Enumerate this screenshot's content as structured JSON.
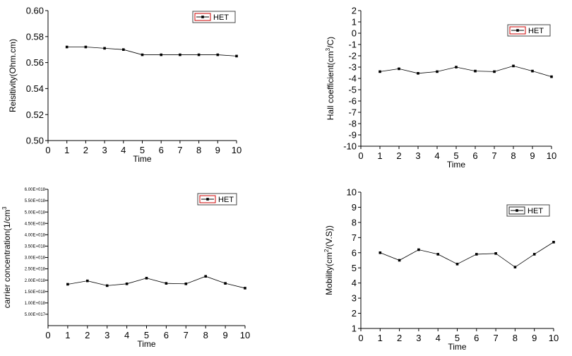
{
  "chart_data": [
    {
      "type": "line",
      "xlabel": "Time",
      "ylabel": "Reisitivity(Ohm.cm)",
      "ylabel_parts": [
        "Reisitivity(Ohm.cm)",
        "",
        ""
      ],
      "xlim": [
        0,
        10
      ],
      "ylim": [
        0.5,
        0.6
      ],
      "x_ticks": [
        "0",
        "1",
        "2",
        "3",
        "4",
        "5",
        "6",
        "7",
        "8",
        "9",
        "10"
      ],
      "y_tick_values": [
        0.5,
        0.52,
        0.54,
        0.56,
        0.58,
        0.6
      ],
      "y_ticks": [
        "0.50",
        "0.52",
        "0.54",
        "0.56",
        "0.58",
        "0.60"
      ],
      "legend_position": "top-right",
      "series": [
        {
          "name": "HET",
          "x": [
            1,
            2,
            3,
            4,
            5,
            6,
            7,
            8,
            9,
            10
          ],
          "values": [
            0.572,
            0.572,
            0.571,
            0.57,
            0.566,
            0.566,
            0.566,
            0.566,
            0.566,
            0.565
          ]
        }
      ],
      "marker_color": "#000000",
      "legend_border_color": "#cc0000"
    },
    {
      "type": "line",
      "xlabel": "Time",
      "ylabel": "Hall coefficient(cm3/C)",
      "ylabel_parts": [
        "Hall coefficient(cm",
        "3",
        "/C)"
      ],
      "xlim": [
        0,
        10
      ],
      "ylim": [
        -10,
        2
      ],
      "x_ticks": [
        "0",
        "1",
        "2",
        "3",
        "4",
        "5",
        "6",
        "7",
        "8",
        "9",
        "10"
      ],
      "y_tick_values": [
        -10,
        -9,
        -8,
        -7,
        -6,
        -5,
        -4,
        -3,
        -2,
        -1,
        0,
        1,
        2
      ],
      "y_ticks": [
        "-10",
        "-9",
        "-8",
        "-7",
        "-6",
        "-5",
        "-4",
        "-3",
        "-2",
        "-1",
        "0",
        "1",
        "2"
      ],
      "legend_position": "top-right",
      "series": [
        {
          "name": "HET",
          "x": [
            1,
            2,
            3,
            4,
            5,
            6,
            7,
            8,
            9,
            10
          ],
          "values": [
            -3.4,
            -3.15,
            -3.55,
            -3.4,
            -3.0,
            -3.35,
            -3.4,
            -2.9,
            -3.35,
            -3.85
          ]
        }
      ],
      "marker_color": "#000000",
      "legend_border_color": "#cc0000"
    },
    {
      "type": "line",
      "xlabel": "Time",
      "ylabel": "carrier concentration(1/cm3",
      "ylabel_parts": [
        "carrier concentration(1/cm",
        "3",
        ""
      ],
      "xlim": [
        0,
        10
      ],
      "ylim": [
        0,
        6e+18
      ],
      "x_ticks": [
        "0",
        "1",
        "2",
        "3",
        "4",
        "5",
        "6",
        "7",
        "8",
        "9",
        "10"
      ],
      "y_tick_values": [
        5e+17,
        1e+18,
        1.5e+18,
        2e+18,
        2.5e+18,
        3e+18,
        3.5e+18,
        4e+18,
        4.5e+18,
        5e+18,
        5.5e+18,
        6e+18
      ],
      "y_ticks": [
        "5.00E+017",
        "1.00E+018",
        "1.50E+018",
        "2.00E+018",
        "2.50E+018",
        "3.00E+018",
        "3.50E+018",
        "4.00E+018",
        "4.50E+018",
        "5.00E+018",
        "5.50E+018",
        "6.00E+018"
      ],
      "legend_position": "top-right",
      "series": [
        {
          "name": "HET",
          "x": [
            1,
            2,
            3,
            4,
            5,
            6,
            7,
            8,
            9,
            10
          ],
          "values": [
            1.82e+18,
            1.97e+18,
            1.76e+18,
            1.84e+18,
            2.09e+18,
            1.86e+18,
            1.84e+18,
            2.17e+18,
            1.86e+18,
            1.65e+18
          ]
        }
      ],
      "marker_color": "#000000",
      "legend_border_color": "#cc0000"
    },
    {
      "type": "line",
      "xlabel": "Time",
      "ylabel": "Mobility(cm2/(V.S))",
      "ylabel_parts": [
        "Mobility(cm",
        "2",
        "/(V.S))"
      ],
      "xlim": [
        0,
        10
      ],
      "ylim": [
        1,
        10
      ],
      "x_ticks": [
        "0",
        "1",
        "2",
        "3",
        "4",
        "5",
        "6",
        "7",
        "8",
        "9",
        "10"
      ],
      "y_tick_values": [
        1,
        2,
        3,
        4,
        5,
        6,
        7,
        8,
        9,
        10
      ],
      "y_ticks": [
        "1",
        "2",
        "3",
        "4",
        "5",
        "6",
        "7",
        "8",
        "9",
        "10"
      ],
      "legend_position": "top-right",
      "series": [
        {
          "name": "HET",
          "x": [
            1,
            2,
            3,
            4,
            5,
            6,
            7,
            8,
            9,
            10
          ],
          "values": [
            6.0,
            5.5,
            6.2,
            5.9,
            5.25,
            5.9,
            5.95,
            5.05,
            5.9,
            6.7
          ]
        }
      ],
      "marker_color": "#000000",
      "legend_border_color": "#222222"
    }
  ]
}
